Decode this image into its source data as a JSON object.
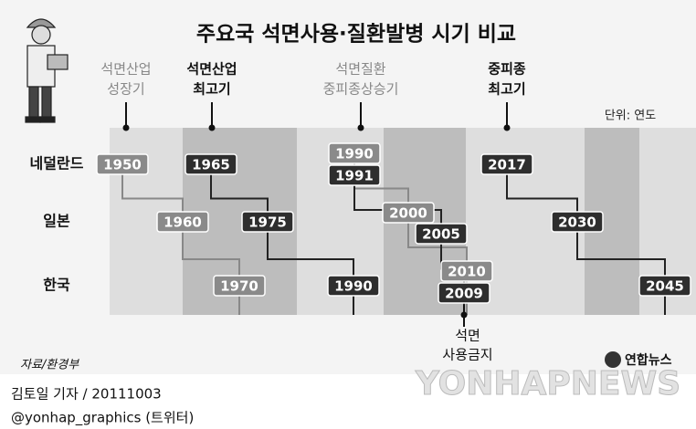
{
  "title": "주요국 석면사용·질환발병 시기 비교",
  "unit": "단위: 연도",
  "stages": [
    [
      "석면산업",
      "성장기"
    ],
    [
      "석면산업",
      "최고기"
    ],
    [
      "석면질환",
      "중피종상승기"
    ],
    [
      "중피종",
      "최고기"
    ]
  ],
  "countries": [
    {
      "name": "네덜란드",
      "years": [
        1950,
        1965,
        1990,
        1991,
        2017
      ]
    },
    {
      "name": "일본",
      "years": [
        1960,
        1975,
        2000,
        2005,
        2030
      ]
    },
    {
      "name": "한국",
      "years": [
        1970,
        1990,
        2010,
        2009,
        2045
      ]
    }
  ],
  "ban_label": [
    "석면",
    "사용금지"
  ],
  "source": "자료/환경부",
  "logo": "연합뉴스",
  "watermark": "YONHAPNEWS",
  "credit": "김토일 기자 / 20111003",
  "twitter": "@yonhap_graphics (트위터)"
}
